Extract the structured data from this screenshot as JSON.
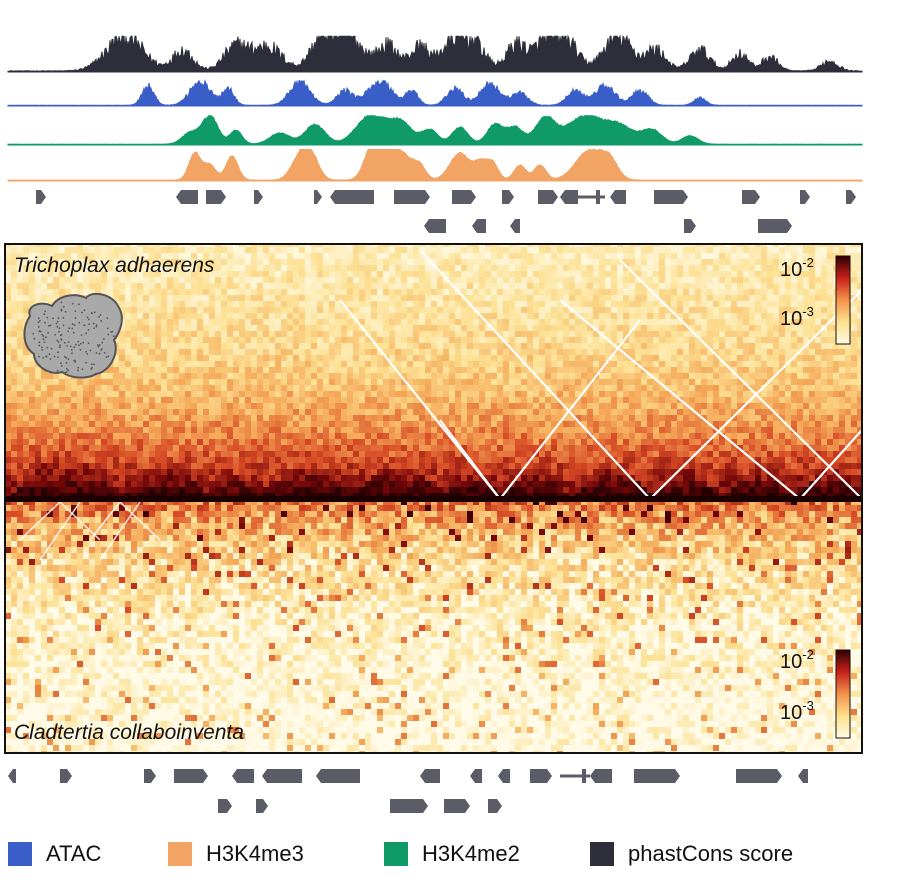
{
  "tracks": [
    {
      "name": "phastCons score",
      "color": "#2e2e3a"
    },
    {
      "name": "ATAC",
      "color": "#3a5ec8"
    },
    {
      "name": "H3K4me2",
      "color": "#0f9a68"
    },
    {
      "name": "H3K4me3",
      "color": "#f1a464"
    }
  ],
  "species_top": "Trichoplax adhaerens",
  "species_bottom": "Cladtertia collaboinventa",
  "colorbar": {
    "label_high_base": "10",
    "label_high_exp": "-2",
    "label_low_base": "10",
    "label_low_exp": "-3"
  },
  "legend": [
    {
      "label": "ATAC",
      "color": "#3a5ec8"
    },
    {
      "label": "H3K4me3",
      "color": "#f1a464"
    },
    {
      "label": "H3K4me2",
      "color": "#0f9a68"
    },
    {
      "label": "phastCons score",
      "color": "#2e2e3a"
    }
  ],
  "colors": {
    "gene": "#5c5c66",
    "heat_low": "#fffbe8",
    "heat_high": "#2a0000",
    "border": "#111111"
  }
}
